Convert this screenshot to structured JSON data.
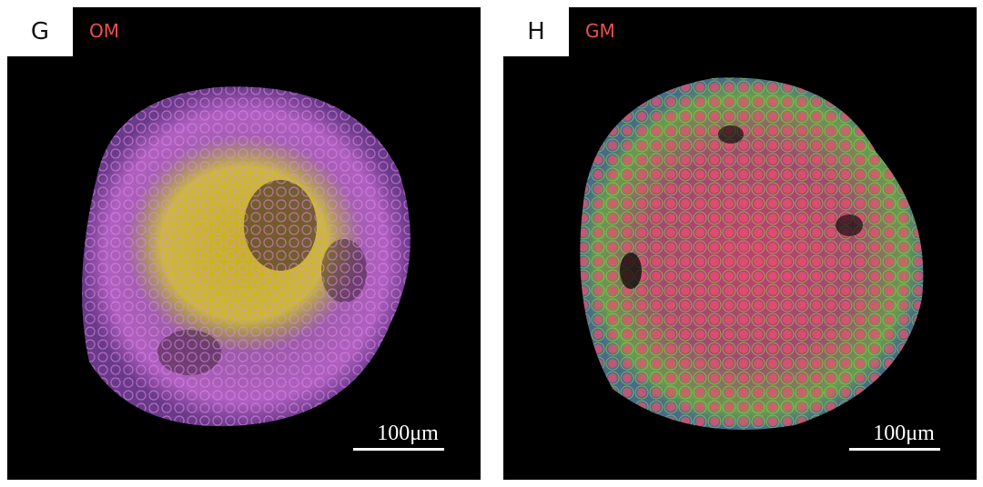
{
  "panels": [
    {
      "letter": "G",
      "label": "OM",
      "scale_bar": "100μm"
    },
    {
      "letter": "H",
      "label": "GM",
      "scale_bar": "100μm"
    }
  ]
}
